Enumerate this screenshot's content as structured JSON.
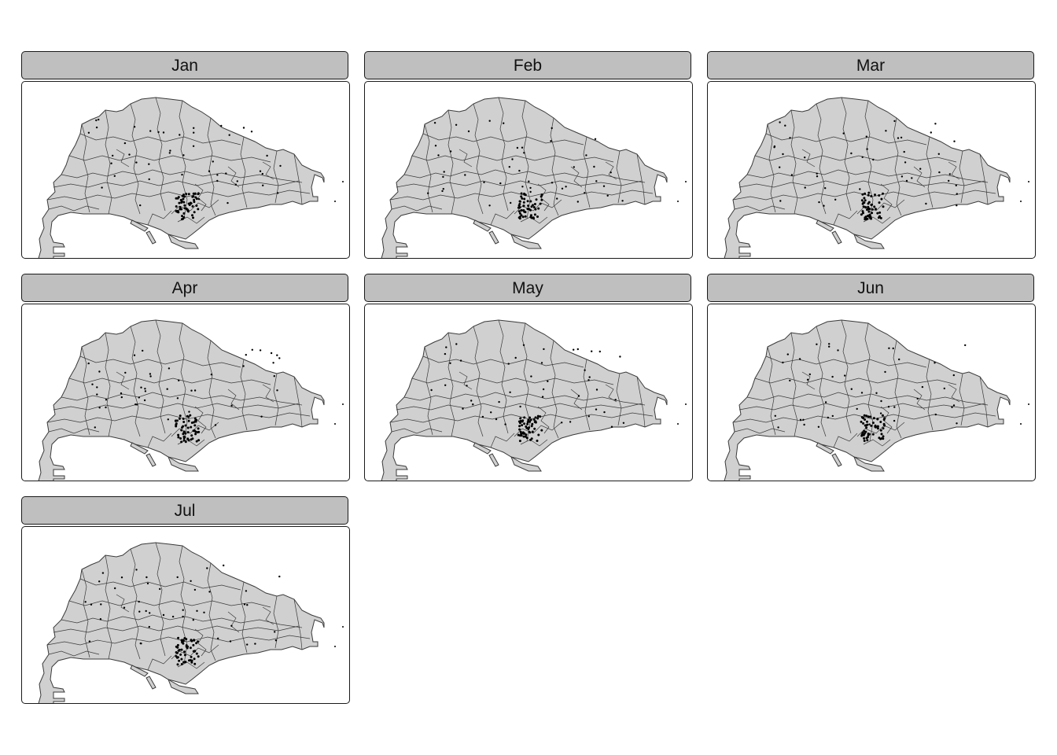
{
  "map": {
    "base_fill": "#d0d0d0",
    "border_color": "#3a3a3a",
    "point_color": "#000000",
    "strip_fill": "#bfbfbf",
    "layers": [
      "polygons",
      "points"
    ]
  },
  "facets": [
    {
      "label": "Jan"
    },
    {
      "label": "Feb"
    },
    {
      "label": "Mar"
    },
    {
      "label": "Apr"
    },
    {
      "label": "May"
    },
    {
      "label": "Jun"
    },
    {
      "label": "Jul"
    }
  ]
}
